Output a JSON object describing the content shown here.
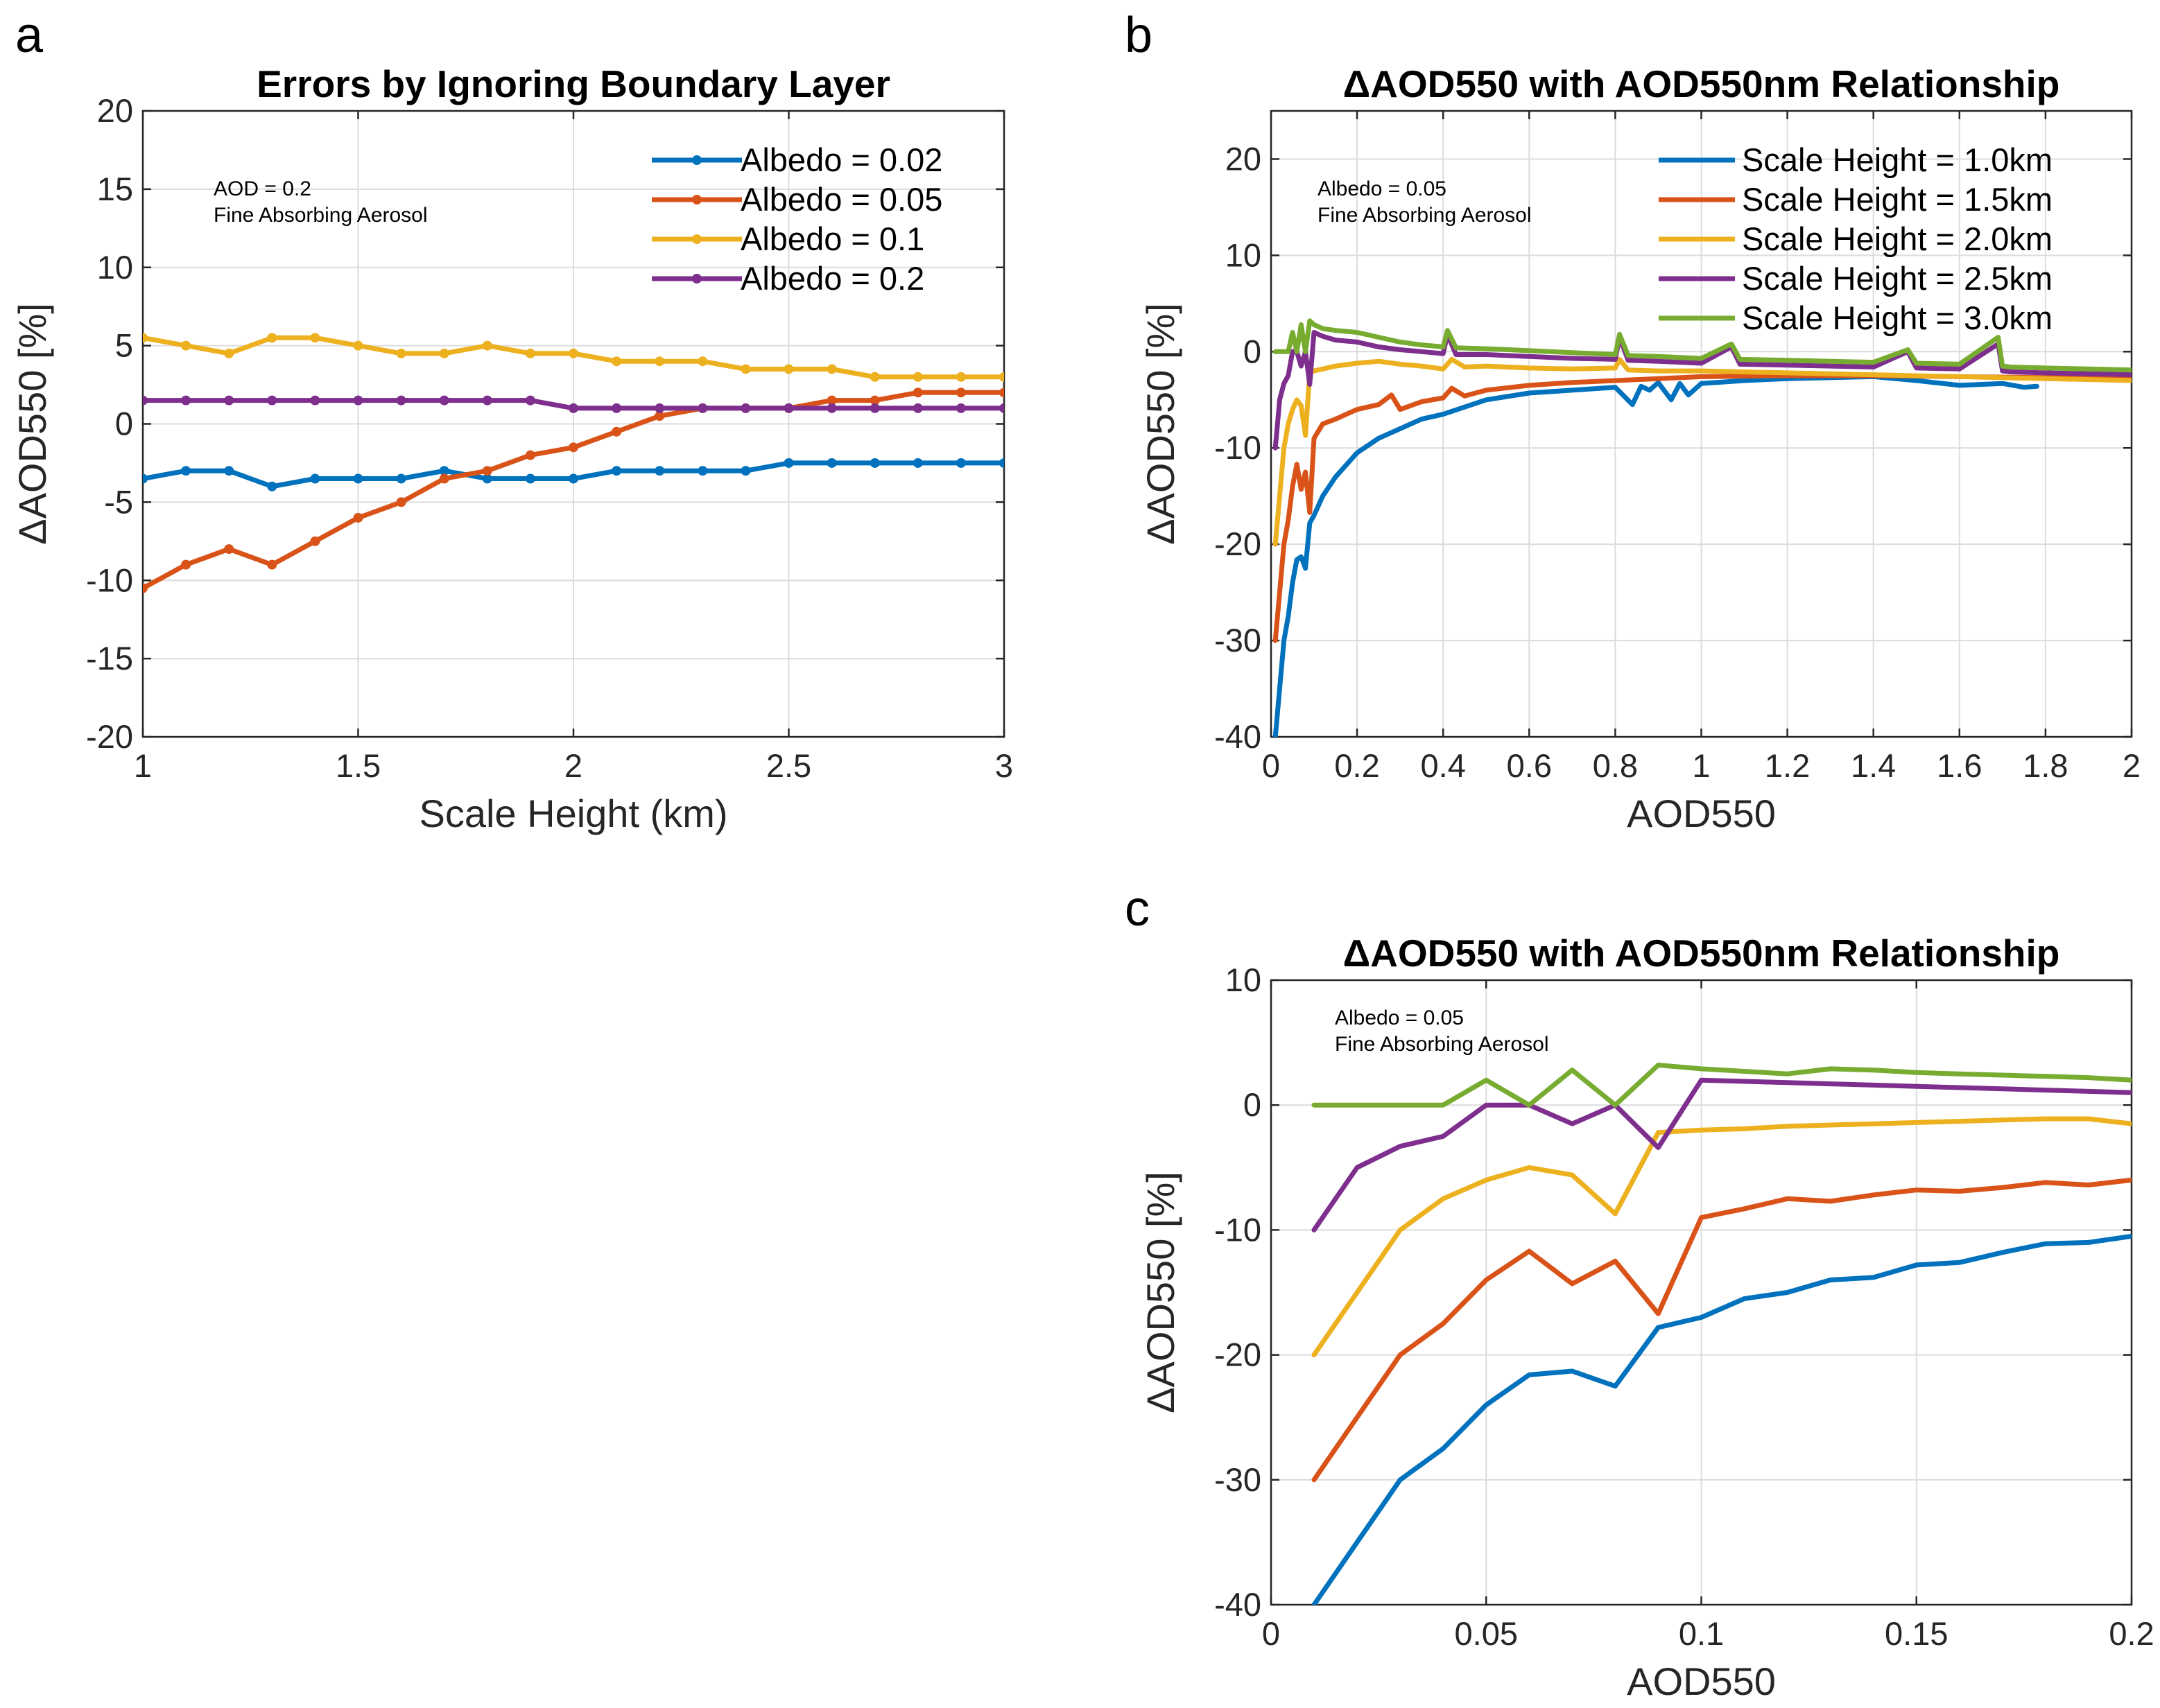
{
  "chart_data": [
    {
      "type": "line",
      "panel": "a",
      "title": "Errors by Ignoring Boundary Layer",
      "xlabel": "Scale Height (km)",
      "ylabel": "ΔAOD550 [%]",
      "xlim": [
        1,
        3
      ],
      "ylim": [
        -20,
        20
      ],
      "xticks": [
        "1",
        "1.5",
        "2",
        "2.5",
        "3"
      ],
      "yticks": [
        "-20",
        "-15",
        "-10",
        "-5",
        "0",
        "5",
        "10",
        "15",
        "20"
      ],
      "annotation": [
        "AOD = 0.2",
        "Fine Absorbing Aerosol"
      ],
      "legend_position": "top-right",
      "markers": true,
      "x": [
        1.0,
        1.1,
        1.2,
        1.3,
        1.4,
        1.5,
        1.6,
        1.7,
        1.8,
        1.9,
        2.0,
        2.1,
        2.2,
        2.3,
        2.4,
        2.5,
        2.6,
        2.7,
        2.8,
        2.9,
        3.0
      ],
      "series": [
        {
          "name": "Albedo = 0.02",
          "color": "#0072BD",
          "values": [
            -3.5,
            -3,
            -3,
            -4,
            -3.5,
            -3.5,
            -3.5,
            -3,
            -3.5,
            -3.5,
            -3.5,
            -3,
            -3,
            -3,
            -3,
            -2.5,
            -2.5,
            -2.5,
            -2.5,
            -2.5,
            -2.5
          ]
        },
        {
          "name": "Albedo = 0.05",
          "color": "#D95319",
          "values": [
            -10.5,
            -9,
            -8,
            -9,
            -7.5,
            -6,
            -5,
            -3.5,
            -3,
            -2,
            -1.5,
            -0.5,
            0.5,
            1,
            1,
            1,
            1.5,
            1.5,
            2,
            2,
            2
          ]
        },
        {
          "name": "Albedo = 0.1",
          "color": "#EDB120",
          "values": [
            5.5,
            5,
            4.5,
            5.5,
            5.5,
            5,
            4.5,
            4.5,
            5,
            4.5,
            4.5,
            4,
            4,
            4,
            3.5,
            3.5,
            3.5,
            3,
            3,
            3,
            3
          ]
        },
        {
          "name": "Albedo = 0.2",
          "color": "#7E2F8E",
          "values": [
            1.5,
            1.5,
            1.5,
            1.5,
            1.5,
            1.5,
            1.5,
            1.5,
            1.5,
            1.5,
            1,
            1,
            1,
            1,
            1,
            1,
            1,
            1,
            1,
            1,
            1
          ]
        }
      ]
    },
    {
      "type": "line",
      "panel": "b",
      "title": "ΔAOD550 with AOD550nm Relationship",
      "xlabel": "AOD550",
      "ylabel": "ΔAOD550 [%]",
      "xlim": [
        0,
        2
      ],
      "ylim": [
        -40,
        25
      ],
      "xticks": [
        "0",
        "0.2",
        "0.4",
        "0.6",
        "0.8",
        "1",
        "1.2",
        "1.4",
        "1.6",
        "1.8",
        "2"
      ],
      "yticks": [
        "-40",
        "-30",
        "-20",
        "-10",
        "0",
        "10",
        "20"
      ],
      "annotation": [
        "Albedo = 0.05",
        "Fine Absorbing Aerosol"
      ],
      "legend_position": "top-right",
      "markers": false,
      "series": [
        {
          "name": "Scale Height = 1.0km",
          "color": "#0072BD",
          "x": [
            0.01,
            0.02,
            0.03,
            0.04,
            0.05,
            0.06,
            0.07,
            0.08,
            0.09,
            0.1,
            0.12,
            0.15,
            0.2,
            0.25,
            0.3,
            0.35,
            0.4,
            0.5,
            0.6,
            0.7,
            0.8,
            0.84,
            0.86,
            0.88,
            0.9,
            0.93,
            0.95,
            0.97,
            1.0,
            1.1,
            1.2,
            1.4,
            1.5,
            1.6,
            1.7,
            1.75,
            1.78
          ],
          "values": [
            -40,
            -35,
            -30,
            -27.5,
            -24,
            -21.6,
            -21.3,
            -22.5,
            -17.8,
            -17,
            -15,
            -13,
            -10.5,
            -9,
            -8,
            -7,
            -6.5,
            -5,
            -4.3,
            -4,
            -3.7,
            -5.5,
            -3.6,
            -4,
            -3.2,
            -5,
            -3.3,
            -4.5,
            -3.3,
            -3,
            -2.8,
            -2.6,
            -3,
            -3.5,
            -3.3,
            -3.7,
            -3.6
          ]
        },
        {
          "name": "Scale Height = 1.5km",
          "color": "#D95319",
          "x": [
            0.01,
            0.02,
            0.03,
            0.04,
            0.05,
            0.06,
            0.07,
            0.08,
            0.09,
            0.1,
            0.12,
            0.15,
            0.2,
            0.25,
            0.28,
            0.3,
            0.35,
            0.4,
            0.42,
            0.45,
            0.5,
            0.6,
            0.7,
            0.8,
            0.9,
            1.0,
            1.2,
            1.4,
            1.6,
            1.8,
            2.0
          ],
          "values": [
            -30,
            -25,
            -20,
            -17.5,
            -14,
            -11.7,
            -14.3,
            -12.5,
            -16.7,
            -9,
            -7.5,
            -7,
            -6,
            -5.5,
            -4.5,
            -6,
            -5.2,
            -4.8,
            -3.8,
            -4.6,
            -4,
            -3.5,
            -3.2,
            -3,
            -2.8,
            -2.6,
            -2.5,
            -2.5,
            -2.6,
            -2.7,
            -2.8
          ]
        },
        {
          "name": "Scale Height = 2.0km",
          "color": "#EDB120",
          "x": [
            0.01,
            0.02,
            0.03,
            0.04,
            0.05,
            0.06,
            0.07,
            0.08,
            0.09,
            0.1,
            0.12,
            0.15,
            0.2,
            0.25,
            0.3,
            0.35,
            0.4,
            0.42,
            0.45,
            0.5,
            0.6,
            0.7,
            0.8,
            0.81,
            0.83,
            0.9,
            1.0,
            1.2,
            1.4,
            1.6,
            1.8,
            2.0
          ],
          "values": [
            -20,
            -15,
            -10,
            -7.5,
            -6,
            -5,
            -5.6,
            -8.7,
            -2.2,
            -2,
            -1.8,
            -1.5,
            -1.2,
            -1,
            -1.3,
            -1.5,
            -1.8,
            -0.8,
            -1.6,
            -1.5,
            -1.7,
            -1.8,
            -1.7,
            -0.8,
            -1.9,
            -2,
            -2,
            -2.2,
            -2.4,
            -2.6,
            -2.8,
            -3
          ]
        },
        {
          "name": "Scale Height = 2.5km",
          "color": "#7E2F8E",
          "x": [
            0.01,
            0.02,
            0.03,
            0.04,
            0.05,
            0.06,
            0.07,
            0.08,
            0.09,
            0.1,
            0.12,
            0.15,
            0.2,
            0.25,
            0.3,
            0.35,
            0.4,
            0.41,
            0.43,
            0.5,
            0.6,
            0.7,
            0.8,
            0.81,
            0.83,
            0.9,
            1.0,
            1.07,
            1.09,
            1.2,
            1.4,
            1.48,
            1.5,
            1.6,
            1.69,
            1.7,
            1.72,
            1.8,
            2.0
          ],
          "values": [
            -10,
            -5,
            -3.3,
            -2.5,
            0,
            0,
            -1.5,
            0,
            -3.4,
            2,
            1.6,
            1.2,
            1,
            0.5,
            0.2,
            0,
            -0.2,
            1.8,
            -0.3,
            -0.3,
            -0.5,
            -0.7,
            -0.8,
            1.5,
            -0.9,
            -1,
            -1.2,
            0.5,
            -1.3,
            -1.4,
            -1.6,
            0,
            -1.7,
            -1.8,
            0.8,
            -2,
            -2.1,
            -2.2,
            -2.4
          ]
        },
        {
          "name": "Scale Height = 3.0km",
          "color": "#77AC30",
          "x": [
            0.01,
            0.02,
            0.03,
            0.04,
            0.05,
            0.06,
            0.07,
            0.08,
            0.09,
            0.1,
            0.12,
            0.15,
            0.2,
            0.25,
            0.3,
            0.35,
            0.4,
            0.41,
            0.43,
            0.5,
            0.6,
            0.7,
            0.8,
            0.81,
            0.83,
            0.9,
            1.0,
            1.07,
            1.09,
            1.2,
            1.4,
            1.48,
            1.5,
            1.6,
            1.69,
            1.7,
            1.72,
            1.8,
            2.0
          ],
          "values": [
            0,
            0,
            0,
            0,
            2,
            0,
            2.8,
            0,
            3.2,
            2.8,
            2.4,
            2.2,
            2,
            1.5,
            1,
            0.7,
            0.5,
            2.2,
            0.4,
            0.3,
            0.1,
            -0.1,
            -0.3,
            1.8,
            -0.4,
            -0.5,
            -0.7,
            0.8,
            -0.8,
            -0.9,
            -1.1,
            0.2,
            -1.2,
            -1.3,
            1.5,
            -1.5,
            -1.6,
            -1.7,
            -1.9
          ]
        }
      ]
    },
    {
      "type": "line",
      "panel": "c",
      "title": "ΔAOD550 with AOD550nm Relationship",
      "xlabel": "AOD550",
      "ylabel": "ΔAOD550 [%]",
      "xlim": [
        0,
        0.2
      ],
      "ylim": [
        -40,
        10
      ],
      "xticks": [
        "0",
        "0.05",
        "0.1",
        "0.15",
        "0.2"
      ],
      "yticks": [
        "-40",
        "-30",
        "-20",
        "-10",
        "0",
        "10"
      ],
      "annotation": [
        "Albedo = 0.05",
        "Fine Absorbing Aerosol"
      ],
      "markers": false,
      "x": [
        0.01,
        0.02,
        0.03,
        0.04,
        0.05,
        0.06,
        0.07,
        0.08,
        0.09,
        0.1,
        0.11,
        0.12,
        0.13,
        0.14,
        0.15,
        0.16,
        0.17,
        0.18,
        0.19,
        0.2
      ],
      "series": [
        {
          "name": "Scale Height = 1.0km",
          "color": "#0072BD",
          "values": [
            -40,
            -35,
            -30,
            -27.5,
            -24,
            -21.6,
            -21.3,
            -22.5,
            -17.8,
            -17,
            -15.5,
            -15,
            -14,
            -13.8,
            -12.8,
            -12.6,
            -11.8,
            -11.1,
            -11,
            -10.5
          ]
        },
        {
          "name": "Scale Height = 1.5km",
          "color": "#D95319",
          "values": [
            -30,
            -25,
            -20,
            -17.5,
            -14,
            -11.7,
            -14.3,
            -12.5,
            -16.7,
            -9,
            -8.3,
            -7.5,
            -7.7,
            -7.2,
            -6.8,
            -6.9,
            -6.6,
            -6.2,
            -6.4,
            -6
          ]
        },
        {
          "name": "Scale Height = 2.0km",
          "color": "#EDB120",
          "values": [
            -20,
            -15,
            -10,
            -7.5,
            -6,
            -5,
            -5.6,
            -8.7,
            -2.2,
            -2,
            -1.9,
            -1.7,
            -1.6,
            -1.5,
            -1.4,
            -1.3,
            -1.2,
            -1.1,
            -1.1,
            -1.5
          ]
        },
        {
          "name": "Scale Height = 2.5km",
          "color": "#7E2F8E",
          "values": [
            -10,
            -5,
            -3.3,
            -2.5,
            0,
            0,
            -1.5,
            0,
            -3.4,
            2,
            1.9,
            1.8,
            1.7,
            1.6,
            1.5,
            1.4,
            1.3,
            1.2,
            1.1,
            1
          ]
        },
        {
          "name": "Scale Height = 3.0km",
          "color": "#77AC30",
          "values": [
            0,
            0,
            0,
            0,
            2,
            0,
            2.8,
            0,
            3.2,
            2.9,
            2.7,
            2.5,
            2.9,
            2.8,
            2.6,
            2.5,
            2.4,
            2.3,
            2.2,
            2
          ]
        }
      ]
    }
  ]
}
